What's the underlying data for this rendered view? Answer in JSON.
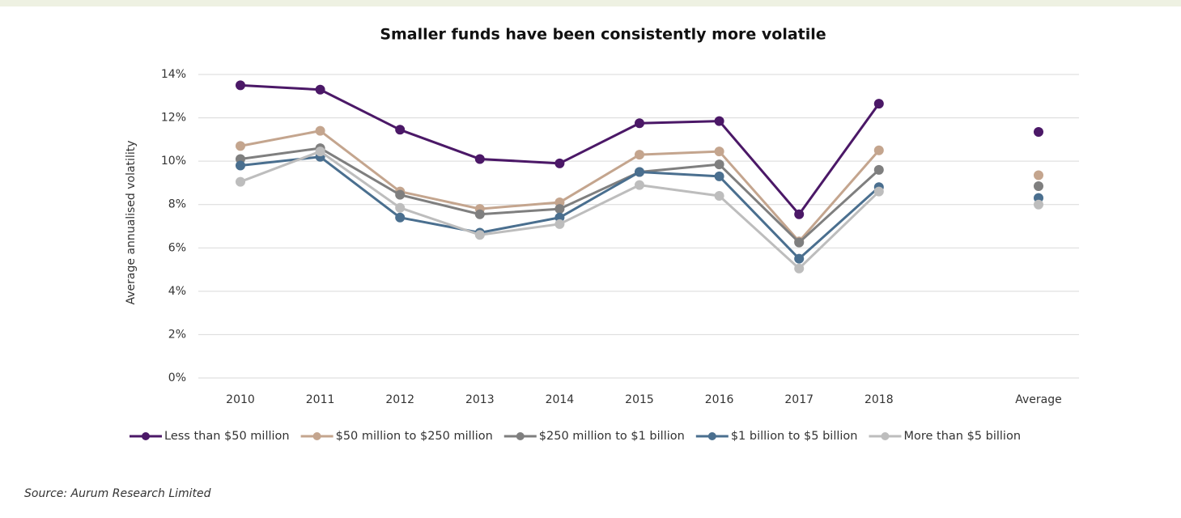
{
  "chart_data": {
    "type": "line",
    "title": "Smaller funds have been consistently more volatile",
    "y_label": "Average annualised volatility",
    "source": "Source: Aurum Research Limited",
    "categories": [
      "2010",
      "2011",
      "2012",
      "2013",
      "2014",
      "2015",
      "2016",
      "2017",
      "2018",
      null,
      "Average"
    ],
    "series": [
      {
        "name": "Less than $50 million",
        "color": "#4b1867",
        "values": [
          13.5,
          13.3,
          11.45,
          10.1,
          9.9,
          11.75,
          11.85,
          7.55,
          12.65,
          null,
          11.35
        ]
      },
      {
        "name": "$50 million to $250 million",
        "color": "#c4a58e",
        "values": [
          10.7,
          11.4,
          8.6,
          7.8,
          8.1,
          10.3,
          10.45,
          6.3,
          10.5,
          null,
          9.35
        ]
      },
      {
        "name": "$250 million to $1 billion",
        "color": "#7f7f7f",
        "values": [
          10.1,
          10.6,
          8.45,
          7.55,
          7.8,
          9.5,
          9.85,
          6.25,
          9.6,
          null,
          8.85
        ]
      },
      {
        "name": "$1 billion to $5 billion",
        "color": "#4a6f8f",
        "values": [
          9.8,
          10.2,
          7.4,
          6.7,
          7.4,
          9.5,
          9.3,
          5.5,
          8.8,
          null,
          8.3
        ]
      },
      {
        "name": "More than $5 billion",
        "color": "#bdbdbd",
        "values": [
          9.05,
          10.45,
          7.85,
          6.6,
          7.1,
          8.9,
          8.4,
          5.05,
          8.6,
          null,
          8.0
        ]
      }
    ],
    "ylim": [
      0,
      14
    ],
    "yticks": [
      {
        "value": 0,
        "label": "0%"
      },
      {
        "value": 2,
        "label": "2%"
      },
      {
        "value": 4,
        "label": "4%"
      },
      {
        "value": 6,
        "label": "6%"
      },
      {
        "value": 8,
        "label": "8%"
      },
      {
        "value": 10,
        "label": "10%"
      },
      {
        "value": 12,
        "label": "12%"
      },
      {
        "value": 14,
        "label": "14%"
      }
    ],
    "grid": true,
    "legend": "bottom"
  }
}
